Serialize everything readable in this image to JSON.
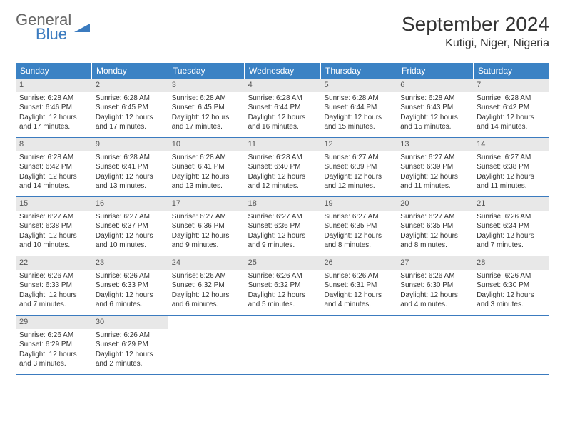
{
  "logo": {
    "text1": "General",
    "text2": "Blue"
  },
  "title": "September 2024",
  "location": "Kutigi, Niger, Nigeria",
  "colors": {
    "header_bg": "#3b82c4",
    "header_text": "#ffffff",
    "daynum_bg": "#e8e8e8",
    "border": "#3b7bbf",
    "logo_gray": "#666666",
    "logo_blue": "#3b7bbf",
    "text": "#333333"
  },
  "fonts": {
    "title_pt": 28,
    "location_pt": 16,
    "weekday_pt": 12,
    "body_pt": 10
  },
  "weekdays": [
    "Sunday",
    "Monday",
    "Tuesday",
    "Wednesday",
    "Thursday",
    "Friday",
    "Saturday"
  ],
  "weeks": [
    [
      {
        "n": "1",
        "sunrise": "6:28 AM",
        "sunset": "6:46 PM",
        "daylight": "12 hours and 17 minutes."
      },
      {
        "n": "2",
        "sunrise": "6:28 AM",
        "sunset": "6:45 PM",
        "daylight": "12 hours and 17 minutes."
      },
      {
        "n": "3",
        "sunrise": "6:28 AM",
        "sunset": "6:45 PM",
        "daylight": "12 hours and 17 minutes."
      },
      {
        "n": "4",
        "sunrise": "6:28 AM",
        "sunset": "6:44 PM",
        "daylight": "12 hours and 16 minutes."
      },
      {
        "n": "5",
        "sunrise": "6:28 AM",
        "sunset": "6:44 PM",
        "daylight": "12 hours and 15 minutes."
      },
      {
        "n": "6",
        "sunrise": "6:28 AM",
        "sunset": "6:43 PM",
        "daylight": "12 hours and 15 minutes."
      },
      {
        "n": "7",
        "sunrise": "6:28 AM",
        "sunset": "6:42 PM",
        "daylight": "12 hours and 14 minutes."
      }
    ],
    [
      {
        "n": "8",
        "sunrise": "6:28 AM",
        "sunset": "6:42 PM",
        "daylight": "12 hours and 14 minutes."
      },
      {
        "n": "9",
        "sunrise": "6:28 AM",
        "sunset": "6:41 PM",
        "daylight": "12 hours and 13 minutes."
      },
      {
        "n": "10",
        "sunrise": "6:28 AM",
        "sunset": "6:41 PM",
        "daylight": "12 hours and 13 minutes."
      },
      {
        "n": "11",
        "sunrise": "6:28 AM",
        "sunset": "6:40 PM",
        "daylight": "12 hours and 12 minutes."
      },
      {
        "n": "12",
        "sunrise": "6:27 AM",
        "sunset": "6:39 PM",
        "daylight": "12 hours and 12 minutes."
      },
      {
        "n": "13",
        "sunrise": "6:27 AM",
        "sunset": "6:39 PM",
        "daylight": "12 hours and 11 minutes."
      },
      {
        "n": "14",
        "sunrise": "6:27 AM",
        "sunset": "6:38 PM",
        "daylight": "12 hours and 11 minutes."
      }
    ],
    [
      {
        "n": "15",
        "sunrise": "6:27 AM",
        "sunset": "6:38 PM",
        "daylight": "12 hours and 10 minutes."
      },
      {
        "n": "16",
        "sunrise": "6:27 AM",
        "sunset": "6:37 PM",
        "daylight": "12 hours and 10 minutes."
      },
      {
        "n": "17",
        "sunrise": "6:27 AM",
        "sunset": "6:36 PM",
        "daylight": "12 hours and 9 minutes."
      },
      {
        "n": "18",
        "sunrise": "6:27 AM",
        "sunset": "6:36 PM",
        "daylight": "12 hours and 9 minutes."
      },
      {
        "n": "19",
        "sunrise": "6:27 AM",
        "sunset": "6:35 PM",
        "daylight": "12 hours and 8 minutes."
      },
      {
        "n": "20",
        "sunrise": "6:27 AM",
        "sunset": "6:35 PM",
        "daylight": "12 hours and 8 minutes."
      },
      {
        "n": "21",
        "sunrise": "6:26 AM",
        "sunset": "6:34 PM",
        "daylight": "12 hours and 7 minutes."
      }
    ],
    [
      {
        "n": "22",
        "sunrise": "6:26 AM",
        "sunset": "6:33 PM",
        "daylight": "12 hours and 7 minutes."
      },
      {
        "n": "23",
        "sunrise": "6:26 AM",
        "sunset": "6:33 PM",
        "daylight": "12 hours and 6 minutes."
      },
      {
        "n": "24",
        "sunrise": "6:26 AM",
        "sunset": "6:32 PM",
        "daylight": "12 hours and 6 minutes."
      },
      {
        "n": "25",
        "sunrise": "6:26 AM",
        "sunset": "6:32 PM",
        "daylight": "12 hours and 5 minutes."
      },
      {
        "n": "26",
        "sunrise": "6:26 AM",
        "sunset": "6:31 PM",
        "daylight": "12 hours and 4 minutes."
      },
      {
        "n": "27",
        "sunrise": "6:26 AM",
        "sunset": "6:30 PM",
        "daylight": "12 hours and 4 minutes."
      },
      {
        "n": "28",
        "sunrise": "6:26 AM",
        "sunset": "6:30 PM",
        "daylight": "12 hours and 3 minutes."
      }
    ],
    [
      {
        "n": "29",
        "sunrise": "6:26 AM",
        "sunset": "6:29 PM",
        "daylight": "12 hours and 3 minutes."
      },
      {
        "n": "30",
        "sunrise": "6:26 AM",
        "sunset": "6:29 PM",
        "daylight": "12 hours and 2 minutes."
      },
      null,
      null,
      null,
      null,
      null
    ]
  ]
}
